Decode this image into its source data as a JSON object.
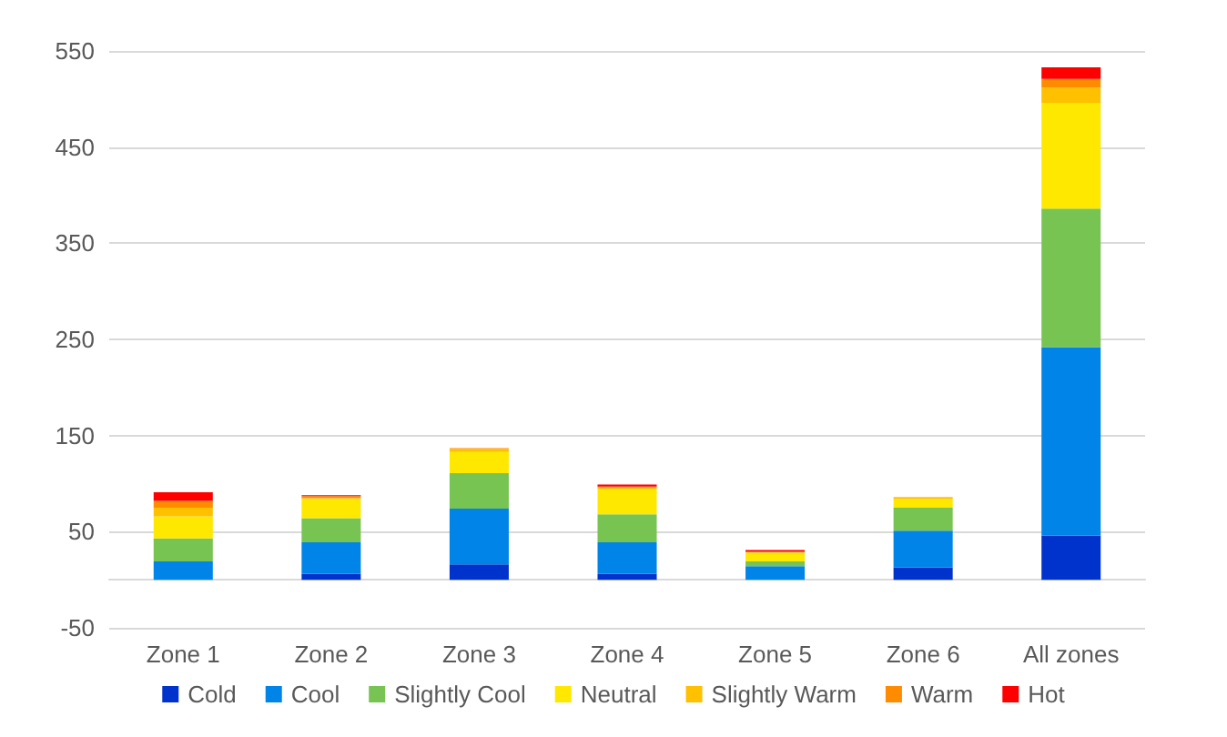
{
  "chart_data": {
    "type": "bar",
    "stacked": true,
    "categories": [
      "Zone 1",
      "Zone 2",
      "Zone 3",
      "Zone 4",
      "Zone 5",
      "Zone 6",
      "All zones"
    ],
    "series": [
      {
        "name": "Cold",
        "color": "#0033cc",
        "values": [
          0,
          6,
          16,
          6,
          0,
          13,
          46
        ]
      },
      {
        "name": "Cool",
        "color": "#0084e8",
        "values": [
          19,
          33,
          58,
          33,
          14,
          38,
          196
        ]
      },
      {
        "name": "Slightly Cool",
        "color": "#78c452",
        "values": [
          24,
          25,
          37,
          29,
          5,
          24,
          144
        ]
      },
      {
        "name": "Neutral",
        "color": "#ffe800",
        "values": [
          23,
          20,
          22,
          26,
          9,
          9,
          110
        ]
      },
      {
        "name": "Slightly Warm",
        "color": "#ffc000",
        "values": [
          9,
          1,
          3,
          2,
          1,
          2,
          16
        ]
      },
      {
        "name": "Warm",
        "color": "#ff8c00",
        "values": [
          7,
          2,
          1,
          1,
          0,
          0,
          9
        ]
      },
      {
        "name": "Hot",
        "color": "#ff0000",
        "values": [
          9,
          1,
          0,
          2,
          2,
          0,
          12
        ]
      }
    ],
    "ylim": [
      -50,
      550
    ],
    "yticks": [
      -50,
      50,
      150,
      250,
      350,
      450,
      550
    ],
    "grid": "y",
    "legend": "bottom"
  }
}
